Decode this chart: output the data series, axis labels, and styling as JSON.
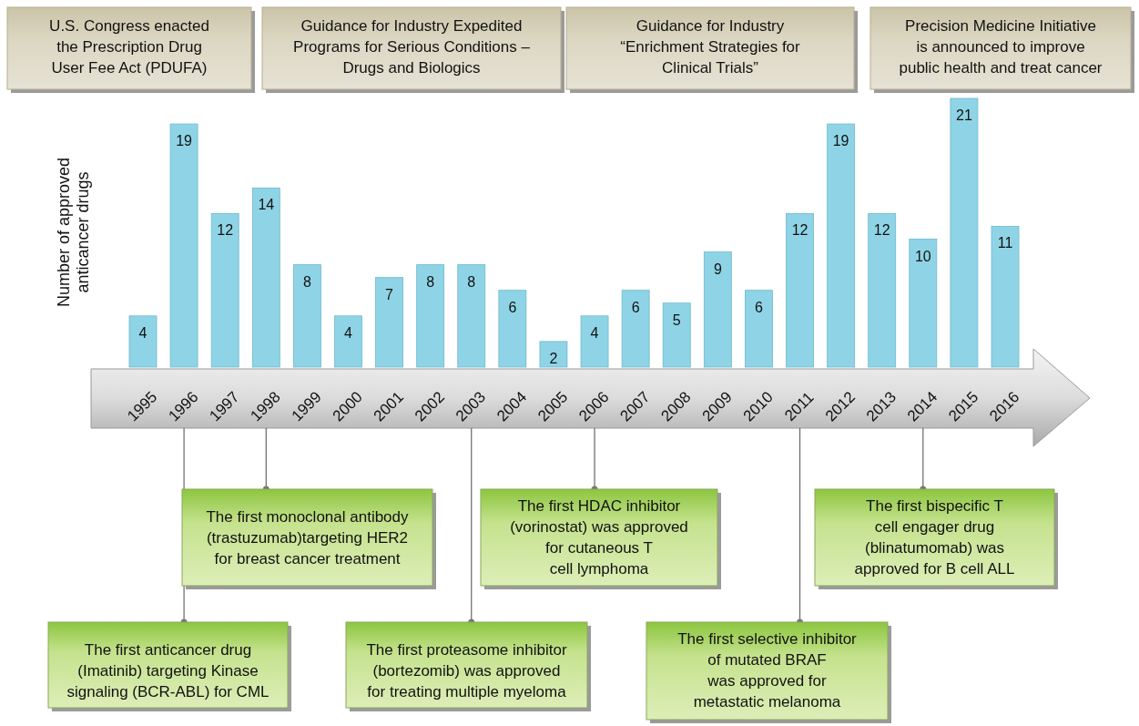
{
  "chart_data": {
    "type": "bar",
    "ylabel": "Number of approved\nanticancer drugs",
    "categories": [
      "1995",
      "1996",
      "1997",
      "1998",
      "1999",
      "2000",
      "2001",
      "2002",
      "2003",
      "2004",
      "2005",
      "2006",
      "2007",
      "2008",
      "2009",
      "2010",
      "2011",
      "2012",
      "2013",
      "2014",
      "2015",
      "2016"
    ],
    "values": [
      4,
      19,
      12,
      14,
      8,
      4,
      7,
      8,
      8,
      6,
      2,
      4,
      6,
      5,
      9,
      6,
      12,
      19,
      12,
      10,
      21,
      11
    ],
    "color": "#8fd4e6",
    "data_labels": true,
    "annotations": [
      "U.S. Congress enacted\nthe Prescription Drug\nUser Fee  Act (PDUFA)",
      "Guidance for Industry Expedited\nPrograms for Serious Conditions –\nDrugs and Biologics",
      "Guidance for Industry\n“Enrichment Strategies for\nClinical Trials”",
      "Precision Medicine Initiative\nis announced to improve\npublic health and treat cancer",
      "The first anticancer drug\n(Imatinib) targeting Kinase\nsignaling (BCR-ABL) for CML",
      "The first monoclonal antibody\n(trastuzumab)targeting HER2\nfor breast cancer treatment",
      "The first proteasome inhibitor\n(bortezomib) was approved\nfor treating multiple myeloma",
      "The first HDAC inhibitor\n(vorinostat) was approved\nfor cutaneous T\ncell lymphoma",
      "The first selective inhibitor\nof mutated BRAF\nwas approved for\nmetastatic melanoma",
      "The first bispecific T\ncell engager drug\n(blinatumomab) was\napproved for B cell ALL"
    ]
  }
}
